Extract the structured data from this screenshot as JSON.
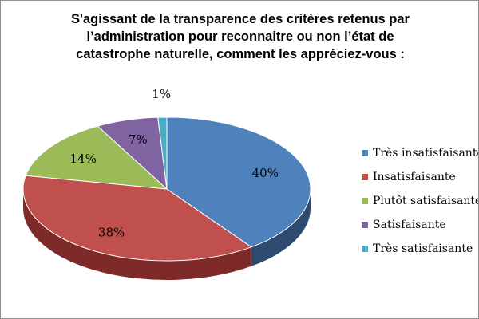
{
  "chart_data": {
    "type": "pie",
    "title": "S'agissant de la transparence des critères retenus par\nl’administration pour reconnaitre ou non l’état de\ncatastrophe naturelle, comment  les appréciez-vous  :",
    "slices": [
      {
        "label": "Très insatisfaisante",
        "value": 40,
        "display": "40%",
        "color": "#4f81bd",
        "side": "#2e4a6e"
      },
      {
        "label": "Insatisfaisante",
        "value": 38,
        "display": "38%",
        "color": "#c0504d",
        "side": "#7d2a28"
      },
      {
        "label": "Plutôt satisfaisante",
        "value": 14,
        "display": "14%",
        "color": "#9bbb59",
        "side": "#5f7a2c"
      },
      {
        "label": "Satisfaisante",
        "value": 7,
        "display": "7%",
        "color": "#8064a2",
        "side": "#4e3a66"
      },
      {
        "label": "Très satisfaisante",
        "value": 1,
        "display": "1%",
        "color": "#4bacc6",
        "side": "#2a7486"
      }
    ],
    "legend_position": "right"
  }
}
